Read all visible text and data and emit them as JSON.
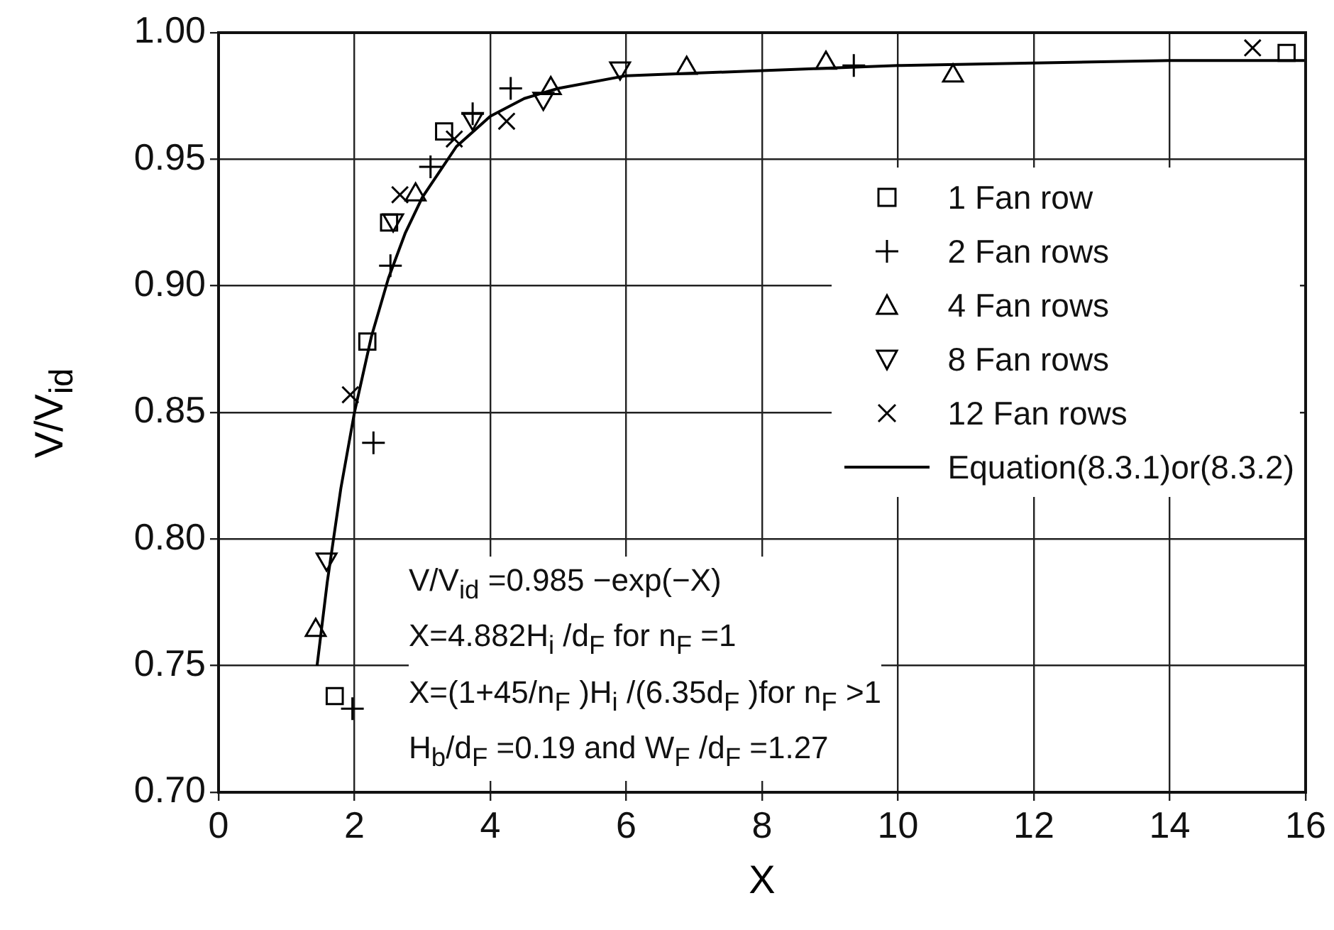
{
  "chart_data": {
    "type": "scatter",
    "xlabel": "X",
    "ylabel": "V/V$_{id}$",
    "xlim": [
      0,
      16
    ],
    "xticks": [
      0,
      2,
      4,
      6,
      8,
      10,
      12,
      14,
      16
    ],
    "ylim": [
      0.7,
      1.0
    ],
    "yticks": [
      {
        "value": 0.7,
        "label": "0.70"
      },
      {
        "value": 0.75,
        "label": "0.75"
      },
      {
        "value": 0.8,
        "label": "0.80"
      },
      {
        "value": 0.85,
        "label": "0.85"
      },
      {
        "value": 0.9,
        "label": "0.90"
      },
      {
        "value": 0.95,
        "label": "0.95"
      },
      {
        "value": 1.0,
        "label": "1.00"
      }
    ],
    "grid": true,
    "legend": "right",
    "series": [
      {
        "name": "1 Fan row",
        "color": "#000000",
        "marker": "square",
        "x": [
          1.71,
          2.19,
          2.51,
          3.32,
          15.72
        ],
        "values": [
          0.738,
          0.878,
          0.925,
          0.961,
          0.992
        ]
      },
      {
        "name": "2 Fan rows",
        "color": "#000000",
        "marker": "plus",
        "x": [
          1.97,
          2.28,
          2.53,
          3.12,
          3.74,
          4.3,
          9.35
        ],
        "values": [
          0.733,
          0.838,
          0.908,
          0.947,
          0.968,
          0.978,
          0.987
        ]
      },
      {
        "name": "4 Fan rows",
        "color": "#000000",
        "marker": "triangle",
        "x": [
          1.43,
          2.9,
          4.89,
          6.89,
          8.94,
          10.81
        ],
        "values": [
          0.764,
          0.936,
          0.978,
          0.986,
          0.988,
          0.983
        ]
      },
      {
        "name": "8 Fan rows",
        "color": "#000000",
        "marker": "triangle-down",
        "x": [
          1.59,
          2.57,
          3.74,
          4.78,
          5.91
        ],
        "values": [
          0.792,
          0.926,
          0.966,
          0.974,
          0.986
        ]
      },
      {
        "name": "12 Fan rows",
        "color": "#000000",
        "marker": "cross",
        "x": [
          1.94,
          2.67,
          3.47,
          4.24,
          15.22
        ],
        "values": [
          0.857,
          0.936,
          0.958,
          0.965,
          0.994
        ]
      },
      {
        "name": "Equation(8.3.1)or(8.3.2)",
        "type": "line",
        "color": "#000000",
        "marker": "none",
        "line_style": "solid",
        "x": [
          1.45,
          1.6,
          1.8,
          2,
          2.25,
          2.5,
          2.75,
          3,
          3.5,
          4,
          4.5,
          5,
          6,
          7,
          8,
          10,
          12,
          14,
          16
        ],
        "values": [
          0.75,
          0.783,
          0.82,
          0.85,
          0.88,
          0.903,
          0.921,
          0.935,
          0.955,
          0.967,
          0.974,
          0.978,
          0.983,
          0.984,
          0.985,
          0.987,
          0.988,
          0.989,
          0.989
        ]
      }
    ],
    "annotations": [
      "V/V$_{id}$ =0.985 −exp(−X)",
      "X=4.882H$_{i}$ /d$_{F}$ for n$_{F}$ =1",
      "X=(1+45/n$_{F}$ )H$_{i}$ /(6.35d$_{F}$ )for n$_{F}$ >1",
      "H$_{b}$/d$_{F}$ =0.19 and W$_{F}$ /d$_{F}$ =1.27"
    ]
  }
}
